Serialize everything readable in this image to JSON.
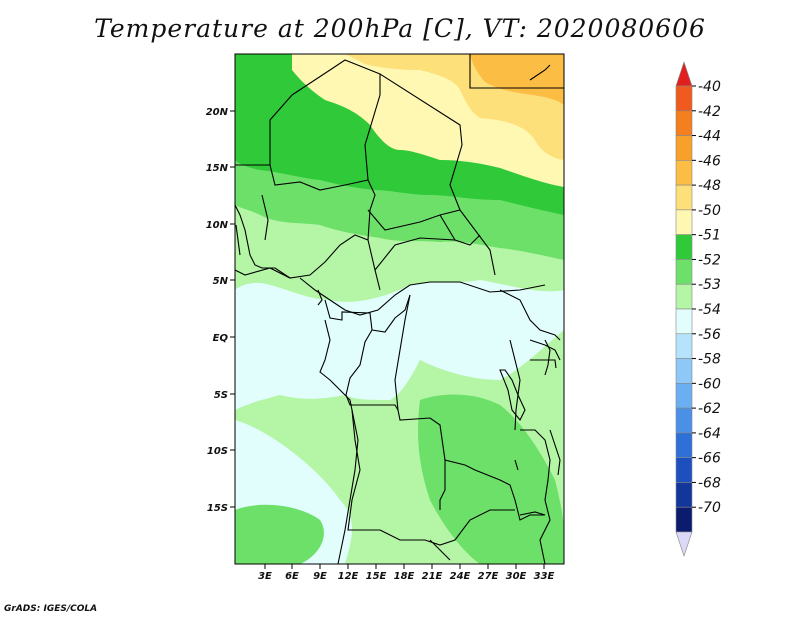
{
  "title": "Temperature at 200hPa [C], VT: 2020080606",
  "footer": "GrADS: IGES/COLA",
  "map": {
    "lat_labels": [
      "20N",
      "15N",
      "10N",
      "5N",
      "EQ",
      "5S",
      "10S",
      "15S"
    ],
    "lon_labels": [
      "3E",
      "6E",
      "9E",
      "12E",
      "15E",
      "18E",
      "21E",
      "24E",
      "27E",
      "30E",
      "33E"
    ]
  },
  "colorbar": {
    "labels": [
      "-40",
      "-42",
      "-44",
      "-46",
      "-48",
      "-50",
      "-51",
      "-52",
      "-53",
      "-54",
      "-56",
      "-58",
      "-60",
      "-62",
      "-64",
      "-66",
      "-68",
      "-70"
    ],
    "colors": [
      "#e11f1f",
      "#f05a1e",
      "#f37f1e",
      "#f7a02a",
      "#fbbd44",
      "#fde07a",
      "#fef8b3",
      "#2fc93a",
      "#6de06a",
      "#b4f5a6",
      "#e1fefc",
      "#b6e3fc",
      "#8ec8f7",
      "#6aaff1",
      "#4a90e6",
      "#2e6fd8",
      "#1d4fbf",
      "#13369a",
      "#0b1c6e",
      "#dcd8f8"
    ]
  },
  "colors": {
    "c_m48": "#fbbd44",
    "c_m50": "#fde07a",
    "c_m51": "#fef8b3",
    "c_m52": "#2fc93a",
    "c_m53": "#6de06a",
    "c_m54": "#b4f5a6",
    "c_m56": "#e1fefc"
  }
}
